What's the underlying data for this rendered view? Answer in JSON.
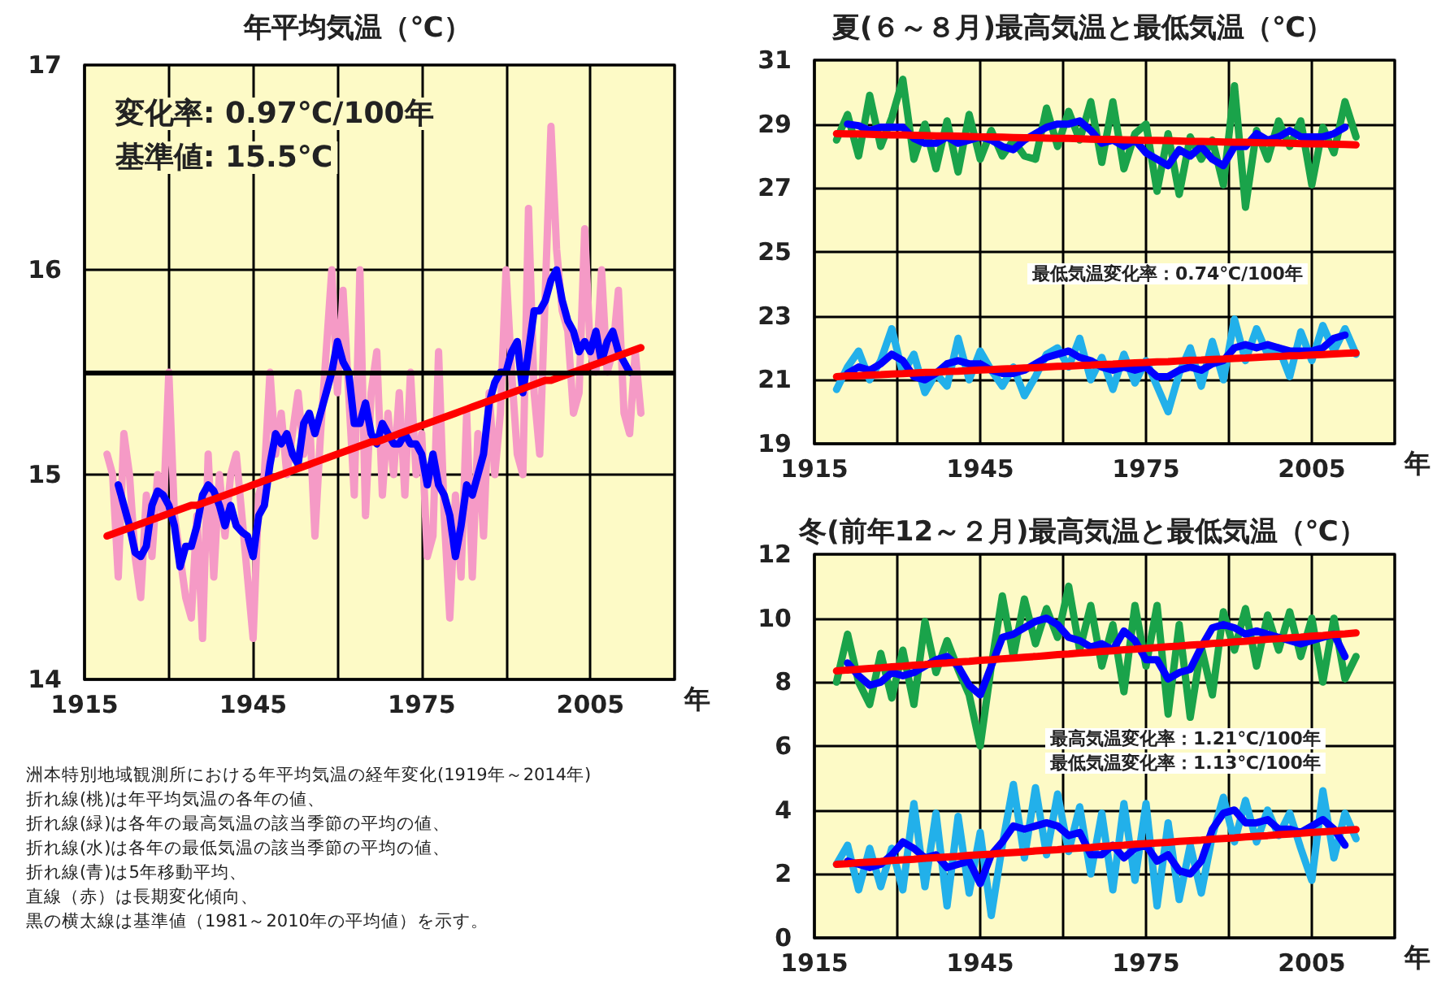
{
  "chart_data": [
    {
      "type": "line",
      "title": "年平均気温（℃）",
      "xlabel": "年",
      "xlim": [
        1915,
        2020
      ],
      "xticks": [
        1915,
        {
          "value": 1930,
          "label": null
        },
        1945,
        {
          "value": 1960,
          "label": null
        },
        1975,
        {
          "value": 1990,
          "label": null
        },
        2005,
        {
          "value": 2020,
          "label": null
        }
      ],
      "ylim": [
        14,
        17
      ],
      "yticks": [
        14,
        15,
        16,
        17
      ],
      "grid": true,
      "annotations": [
        "変化率: 0.97℃/100年",
        "基準値: 15.5℃"
      ],
      "ref_lines": [
        {
          "axis": "y",
          "value": 15.5,
          "color": "#000000"
        }
      ],
      "x": [
        1919,
        1920,
        1921,
        1922,
        1923,
        1924,
        1925,
        1926,
        1927,
        1928,
        1929,
        1930,
        1931,
        1932,
        1933,
        1934,
        1935,
        1936,
        1937,
        1938,
        1939,
        1940,
        1941,
        1942,
        1943,
        1944,
        1945,
        1946,
        1947,
        1948,
        1949,
        1950,
        1951,
        1952,
        1953,
        1954,
        1955,
        1956,
        1957,
        1958,
        1959,
        1960,
        1961,
        1962,
        1963,
        1964,
        1965,
        1966,
        1967,
        1968,
        1969,
        1970,
        1971,
        1972,
        1973,
        1974,
        1975,
        1976,
        1977,
        1978,
        1979,
        1980,
        1981,
        1982,
        1983,
        1984,
        1985,
        1986,
        1987,
        1988,
        1989,
        1990,
        1991,
        1992,
        1993,
        1994,
        1995,
        1996,
        1997,
        1998,
        1999,
        2000,
        2001,
        2002,
        2003,
        2004,
        2005,
        2006,
        2007,
        2008,
        2009,
        2010,
        2011,
        2012,
        2013,
        2014
      ],
      "series": [
        {
          "color": "#f59ac6",
          "values": [
            15.1,
            15.0,
            14.5,
            15.2,
            15.0,
            14.6,
            14.4,
            14.9,
            14.6,
            15.0,
            14.8,
            15.5,
            14.8,
            14.6,
            14.4,
            14.3,
            14.8,
            14.2,
            15.1,
            14.5,
            15.0,
            14.7,
            15.0,
            15.1,
            14.8,
            14.5,
            14.2,
            14.9,
            15.0,
            15.5,
            15.1,
            15.3,
            15.0,
            15.2,
            15.4,
            15.1,
            15.3,
            14.7,
            15.2,
            15.6,
            16.0,
            15.4,
            15.9,
            15.4,
            14.9,
            16.0,
            14.8,
            15.4,
            15.6,
            14.9,
            15.3,
            15.0,
            15.4,
            14.9,
            15.5,
            15.0,
            15.2,
            14.6,
            14.7,
            15.6,
            14.8,
            14.3,
            14.9,
            14.5,
            15.3,
            14.5,
            15.2,
            14.7,
            15.4,
            15.0,
            15.3,
            16.0,
            15.5,
            15.1,
            15.0,
            16.3,
            15.4,
            15.1,
            15.9,
            16.7,
            16.1,
            15.8,
            15.7,
            15.3,
            15.4,
            16.2,
            15.6,
            15.5,
            16.0,
            15.5,
            15.6,
            15.9,
            15.3,
            15.2,
            15.6,
            15.3
          ]
        },
        {
          "color": "#0000ff",
          "values": [
            null,
            null,
            14.95,
            14.85,
            14.75,
            14.62,
            14.6,
            14.65,
            14.85,
            14.92,
            14.9,
            14.85,
            14.75,
            14.55,
            14.65,
            14.65,
            14.75,
            14.9,
            14.95,
            14.92,
            14.85,
            14.75,
            14.85,
            14.75,
            14.72,
            14.7,
            14.6,
            14.8,
            14.85,
            15.05,
            15.2,
            15.15,
            15.2,
            15.1,
            15.05,
            15.25,
            15.3,
            15.2,
            15.3,
            15.4,
            15.5,
            15.65,
            15.55,
            15.5,
            15.25,
            15.25,
            15.35,
            15.2,
            15.15,
            15.25,
            15.2,
            15.15,
            15.15,
            15.2,
            15.15,
            15.15,
            15.1,
            14.95,
            15.1,
            14.95,
            14.9,
            14.8,
            14.6,
            14.75,
            14.95,
            14.9,
            15.0,
            15.1,
            15.35,
            15.45,
            15.5,
            15.5,
            15.6,
            15.65,
            15.4,
            15.6,
            15.8,
            15.8,
            15.85,
            15.95,
            16.0,
            15.85,
            15.75,
            15.7,
            15.6,
            15.65,
            15.6,
            15.7,
            15.55,
            15.65,
            15.7,
            15.6,
            15.55,
            15.5,
            null,
            null
          ]
        },
        {
          "color": "#ff0000",
          "values": [
            14.7,
            14.71,
            14.72,
            14.73,
            14.74,
            14.75,
            14.76,
            14.77,
            14.78,
            14.79,
            14.8,
            14.81,
            14.82,
            14.83,
            14.84,
            14.85,
            14.85,
            14.86,
            14.87,
            14.88,
            14.89,
            14.9,
            14.91,
            14.92,
            14.93,
            14.94,
            14.95,
            14.96,
            14.97,
            14.98,
            14.99,
            15.0,
            15.01,
            15.02,
            15.03,
            15.04,
            15.05,
            15.06,
            15.07,
            15.08,
            15.09,
            15.1,
            15.11,
            15.12,
            15.13,
            15.14,
            15.15,
            15.16,
            15.16,
            15.17,
            15.18,
            15.19,
            15.2,
            15.21,
            15.22,
            15.23,
            15.24,
            15.25,
            15.26,
            15.27,
            15.28,
            15.29,
            15.3,
            15.31,
            15.32,
            15.33,
            15.34,
            15.35,
            15.36,
            15.37,
            15.38,
            15.39,
            15.4,
            15.41,
            15.42,
            15.43,
            15.44,
            15.45,
            15.46,
            15.46,
            15.47,
            15.48,
            15.49,
            15.5,
            15.51,
            15.52,
            15.53,
            15.54,
            15.55,
            15.56,
            15.57,
            15.58,
            15.59,
            15.6,
            15.61,
            15.62
          ]
        }
      ]
    },
    {
      "type": "line",
      "title": "夏(６～８月)最高気温と最低気温（℃）",
      "xlabel": "年",
      "xlim": [
        1915,
        2020
      ],
      "xticks": [
        1915,
        {
          "value": 1930,
          "label": null
        },
        1945,
        {
          "value": 1960,
          "label": null
        },
        1975,
        {
          "value": 1990,
          "label": null
        },
        2005,
        {
          "value": 2020,
          "label": null
        }
      ],
      "ylim": [
        19,
        31
      ],
      "yticks": [
        19,
        21,
        23,
        25,
        27,
        29,
        31
      ],
      "grid": true,
      "annotations": [
        "最低気温変化率：0.74℃/100年"
      ],
      "x": [
        1919,
        1921,
        1923,
        1925,
        1927,
        1929,
        1931,
        1933,
        1935,
        1937,
        1939,
        1941,
        1943,
        1945,
        1947,
        1949,
        1951,
        1953,
        1955,
        1957,
        1959,
        1961,
        1963,
        1965,
        1967,
        1969,
        1971,
        1973,
        1975,
        1977,
        1979,
        1981,
        1983,
        1985,
        1987,
        1989,
        1991,
        1993,
        1995,
        1997,
        1999,
        2001,
        2003,
        2005,
        2007,
        2009,
        2011,
        2013
      ],
      "series": [
        {
          "color": "#1aa34a",
          "values": [
            28.5,
            29.3,
            28.0,
            29.9,
            28.3,
            29.2,
            30.4,
            27.9,
            29.0,
            27.6,
            29.1,
            27.5,
            29.3,
            27.9,
            28.8,
            28.0,
            28.5,
            28.0,
            27.9,
            29.5,
            28.3,
            29.4,
            28.5,
            29.7,
            27.8,
            29.7,
            27.6,
            28.7,
            29.0,
            26.9,
            28.7,
            26.8,
            28.6,
            27.9,
            28.5,
            27.1,
            30.2,
            26.4,
            28.8,
            27.9,
            29.1,
            28.3,
            29.1,
            27.1,
            28.9,
            28.1,
            29.7,
            28.6
          ]
        },
        {
          "color": "#0000ff",
          "values": [
            null,
            29.0,
            28.95,
            28.8,
            28.9,
            28.9,
            28.9,
            28.55,
            28.4,
            28.4,
            28.6,
            28.4,
            28.5,
            28.6,
            28.5,
            28.3,
            28.2,
            28.5,
            28.7,
            28.9,
            29.0,
            29.0,
            29.1,
            28.8,
            28.4,
            28.5,
            28.3,
            28.5,
            28.1,
            27.9,
            27.7,
            28.2,
            28.0,
            28.3,
            27.9,
            27.7,
            28.3,
            28.3,
            28.7,
            28.5,
            28.6,
            28.8,
            28.6,
            28.6,
            28.6,
            28.7,
            28.9,
            null
          ]
        },
        {
          "color": "#ff0000",
          "values": [
            28.7,
            28.69,
            28.69,
            28.68,
            28.67,
            28.66,
            28.66,
            28.65,
            28.64,
            28.63,
            28.63,
            28.62,
            28.61,
            28.6,
            28.6,
            28.59,
            28.58,
            28.57,
            28.57,
            28.56,
            28.55,
            28.55,
            28.54,
            28.53,
            28.52,
            28.52,
            28.51,
            28.5,
            28.49,
            28.49,
            28.48,
            28.47,
            28.46,
            28.46,
            28.45,
            28.44,
            28.43,
            28.43,
            28.42,
            28.41,
            28.41,
            28.4,
            28.39,
            28.38,
            28.38,
            28.37,
            28.36,
            28.35
          ]
        },
        {
          "color": "#22b0ea",
          "values": [
            20.7,
            21.4,
            21.9,
            21.0,
            21.6,
            22.6,
            21.2,
            21.8,
            20.6,
            21.2,
            20.8,
            22.3,
            21.0,
            21.9,
            21.3,
            20.8,
            21.4,
            20.5,
            21.1,
            21.8,
            22.0,
            21.4,
            22.3,
            21.0,
            21.7,
            20.7,
            21.8,
            20.9,
            21.6,
            20.8,
            20.0,
            21.2,
            22.0,
            20.8,
            22.2,
            21.0,
            22.9,
            21.6,
            22.6,
            21.8,
            22.0,
            21.1,
            22.5,
            21.6,
            22.7,
            21.9,
            22.6,
            21.8
          ]
        },
        {
          "color": "#0000ff",
          "values": [
            null,
            21.2,
            21.4,
            21.3,
            21.5,
            21.8,
            21.6,
            21.1,
            21.0,
            21.2,
            21.5,
            21.6,
            21.5,
            21.5,
            21.3,
            21.2,
            21.2,
            21.3,
            21.5,
            21.7,
            21.8,
            21.9,
            21.7,
            21.6,
            21.4,
            21.3,
            21.4,
            21.3,
            21.4,
            21.1,
            21.1,
            21.3,
            21.4,
            21.3,
            21.5,
            21.6,
            22.0,
            22.1,
            22.0,
            22.1,
            22.0,
            21.9,
            21.9,
            21.9,
            22.0,
            22.3,
            22.4,
            null
          ]
        },
        {
          "color": "#ff0000",
          "values": [
            21.1,
            21.12,
            21.13,
            21.15,
            21.16,
            21.18,
            21.19,
            21.21,
            21.23,
            21.24,
            21.26,
            21.27,
            21.29,
            21.31,
            21.32,
            21.34,
            21.35,
            21.37,
            21.38,
            21.4,
            21.42,
            21.43,
            21.45,
            21.46,
            21.48,
            21.49,
            21.51,
            21.53,
            21.54,
            21.56,
            21.57,
            21.59,
            21.61,
            21.62,
            21.64,
            21.65,
            21.67,
            21.68,
            21.7,
            21.72,
            21.73,
            21.75,
            21.76,
            21.78,
            21.79,
            21.81,
            21.83,
            21.84
          ]
        }
      ]
    },
    {
      "type": "line",
      "title": "冬(前年12～２月)最高気温と最低気温（℃）",
      "xlabel": "年",
      "xlim": [
        1915,
        2020
      ],
      "xticks": [
        1915,
        {
          "value": 1930,
          "label": null
        },
        1945,
        {
          "value": 1960,
          "label": null
        },
        1975,
        {
          "value": 1990,
          "label": null
        },
        2005,
        {
          "value": 2020,
          "label": null
        }
      ],
      "ylim": [
        0,
        12
      ],
      "yticks": [
        0,
        2,
        4,
        6,
        8,
        10,
        12
      ],
      "grid": true,
      "annotations": [
        "最高気温変化率：1.21℃/100年",
        "最低気温変化率：1.13℃/100年"
      ],
      "x": [
        1919,
        1921,
        1923,
        1925,
        1927,
        1929,
        1931,
        1933,
        1935,
        1937,
        1939,
        1941,
        1943,
        1945,
        1947,
        1949,
        1951,
        1953,
        1955,
        1957,
        1959,
        1961,
        1963,
        1965,
        1967,
        1969,
        1971,
        1973,
        1975,
        1977,
        1979,
        1981,
        1983,
        1985,
        1987,
        1989,
        1991,
        1993,
        1995,
        1997,
        1999,
        2001,
        2003,
        2005,
        2007,
        2009,
        2011,
        2013
      ],
      "series": [
        {
          "color": "#1aa34a",
          "values": [
            8.0,
            9.5,
            8.0,
            7.3,
            8.9,
            7.5,
            9.0,
            7.3,
            9.9,
            8.3,
            9.3,
            8.4,
            7.6,
            6.0,
            8.5,
            10.7,
            8.8,
            10.6,
            9.2,
            10.3,
            9.4,
            11.0,
            9.0,
            10.4,
            8.5,
            9.8,
            7.7,
            10.4,
            8.5,
            10.4,
            7.0,
            9.8,
            6.9,
            9.1,
            7.6,
            10.2,
            9.0,
            10.3,
            8.5,
            10.1,
            9.0,
            10.2,
            8.8,
            10.0,
            8.0,
            10.0,
            8.1,
            8.8
          ]
        },
        {
          "color": "#0000ff",
          "values": [
            null,
            8.6,
            8.2,
            7.9,
            8.0,
            8.3,
            8.2,
            8.3,
            8.5,
            8.7,
            8.8,
            8.5,
            7.9,
            7.6,
            8.5,
            9.4,
            9.5,
            9.7,
            9.9,
            10.0,
            9.8,
            9.4,
            9.3,
            9.1,
            9.2,
            9.0,
            9.6,
            9.3,
            8.7,
            8.7,
            8.1,
            8.3,
            8.4,
            9.1,
            9.7,
            9.8,
            9.7,
            9.5,
            9.6,
            9.5,
            9.4,
            9.3,
            9.2,
            9.3,
            9.4,
            9.5,
            8.8,
            null
          ]
        },
        {
          "color": "#ff0000",
          "values": [
            8.35,
            8.38,
            8.4,
            8.43,
            8.45,
            8.48,
            8.5,
            8.53,
            8.55,
            8.58,
            8.6,
            8.63,
            8.65,
            8.68,
            8.7,
            8.73,
            8.75,
            8.78,
            8.8,
            8.83,
            8.86,
            8.88,
            8.91,
            8.93,
            8.96,
            8.98,
            9.01,
            9.03,
            9.06,
            9.08,
            9.11,
            9.13,
            9.16,
            9.18,
            9.21,
            9.23,
            9.26,
            9.28,
            9.31,
            9.34,
            9.36,
            9.39,
            9.41,
            9.44,
            9.46,
            9.49,
            9.51,
            9.54
          ]
        },
        {
          "color": "#22b0ea",
          "values": [
            2.3,
            2.9,
            1.5,
            2.8,
            1.6,
            2.8,
            1.5,
            4.2,
            1.6,
            3.9,
            1.0,
            3.8,
            1.4,
            3.3,
            0.7,
            2.9,
            4.8,
            2.5,
            4.7,
            2.6,
            4.5,
            2.7,
            4.1,
            2.0,
            3.9,
            1.5,
            4.2,
            1.8,
            4.2,
            1.0,
            3.6,
            1.2,
            2.9,
            1.4,
            3.2,
            4.4,
            3.0,
            4.3,
            3.0,
            4.0,
            3.2,
            3.9,
            2.8,
            1.8,
            4.6,
            2.5,
            3.9,
            3.1
          ]
        },
        {
          "color": "#0000ff",
          "values": [
            null,
            2.4,
            2.3,
            2.2,
            2.3,
            2.6,
            3.0,
            2.8,
            2.5,
            2.6,
            2.2,
            2.3,
            2.4,
            1.7,
            2.6,
            3.0,
            3.5,
            3.4,
            3.5,
            3.6,
            3.5,
            3.2,
            3.3,
            2.6,
            2.6,
            2.9,
            2.5,
            2.8,
            2.9,
            2.4,
            2.6,
            2.1,
            2.0,
            2.4,
            3.4,
            3.9,
            4.0,
            3.6,
            3.6,
            3.7,
            3.4,
            3.4,
            3.3,
            3.5,
            3.7,
            3.4,
            2.9,
            null
          ]
        },
        {
          "color": "#ff0000",
          "values": [
            2.3,
            2.32,
            2.35,
            2.37,
            2.39,
            2.42,
            2.44,
            2.46,
            2.49,
            2.51,
            2.53,
            2.55,
            2.58,
            2.6,
            2.62,
            2.65,
            2.67,
            2.69,
            2.72,
            2.74,
            2.76,
            2.79,
            2.81,
            2.83,
            2.86,
            2.88,
            2.9,
            2.93,
            2.95,
            2.97,
            2.99,
            3.02,
            3.04,
            3.06,
            3.09,
            3.11,
            3.13,
            3.16,
            3.18,
            3.2,
            3.23,
            3.25,
            3.27,
            3.3,
            3.32,
            3.34,
            3.37,
            3.39
          ]
        }
      ]
    },
    {
      "type": "other",
      "annotations": [
        "洲本特別地域観測所における年平均気温の経年変化(1919年～2014年)",
        "折れ線(桃)は年平均気温の各年の値、",
        "折れ線(緑)は各年の最高気温の該当季節の平均の値、",
        "折れ線(水)は各年の最低気温の該当季節の平均の値、",
        "折れ線(青)は5年移動平均、",
        "直線（赤）は長期変化傾向、",
        "黒の横太線は基準値（1981～2010年の平均値）を示す。"
      ]
    }
  ]
}
